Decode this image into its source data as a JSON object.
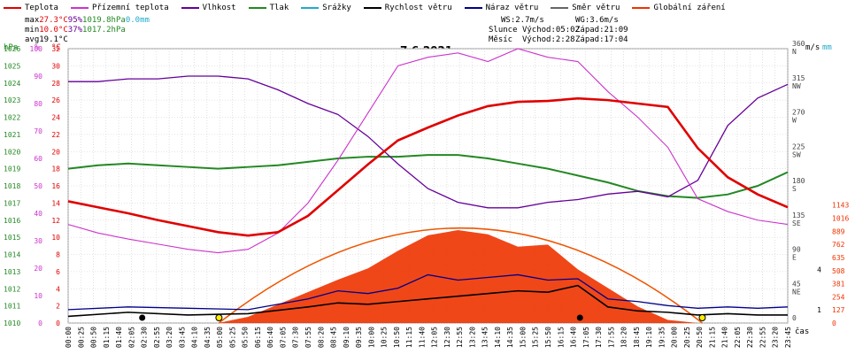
{
  "legend": [
    {
      "label": "Teplota",
      "color": "#e00000"
    },
    {
      "label": "Přízemní teplota",
      "color": "#cc33cc"
    },
    {
      "label": "Vlhkost",
      "color": "#660099"
    },
    {
      "label": "Tlak",
      "color": "#228822"
    },
    {
      "label": "Srážky",
      "color": "#22aacc"
    },
    {
      "label": "Rychlost větru",
      "color": "#000000"
    },
    {
      "label": "Náraz větru",
      "color": "#000088"
    },
    {
      "label": "Směr větru",
      "color": "#666666"
    },
    {
      "label": "Globální záření",
      "color": "#ee3300"
    }
  ],
  "stats": {
    "max": {
      "label": "max",
      "temp": "27.3°C",
      "hum": "95%",
      "press": "1019.8hPa",
      "rain": "0.0mm"
    },
    "min": {
      "label": "min",
      "temp": "10.0°C",
      "hum": "37%",
      "press": "1017.2hPa"
    },
    "avg": {
      "label": "avg",
      "temp": "19.1°C"
    }
  },
  "wind_info": {
    "ws": "WS:2.7m/s",
    "wg": "WG:3.6m/s",
    "sun_label": "Slunce",
    "sun_rise": "Východ:05:02",
    "sun_set": "Západ:21:09",
    "moon_label": "Měsíc",
    "moon_rise": "Východ:2:28",
    "moon_set": "Západ:17:04"
  },
  "date": "7.6.2021",
  "axis_titles": {
    "hpa": "hPa",
    "pct": "%",
    "degc": "°C",
    "ms": "m/s",
    "mm": "mm",
    "cas": "čas"
  },
  "colors": {
    "temp": "#e00000",
    "dew": "#cc33cc",
    "hum": "#660099",
    "press": "#228822",
    "rain": "#22aacc",
    "wind": "#000000",
    "gust": "#000088",
    "dir": "#666666",
    "rad": "#ee3300",
    "radcurve": "#ee5500",
    "grid": "#cccccc"
  },
  "chart_data": {
    "type": "line",
    "title": "7.6.2021",
    "xlabel": "čas",
    "x_ticks": [
      "00:00",
      "00:25",
      "00:50",
      "01:15",
      "01:40",
      "02:05",
      "02:30",
      "02:55",
      "03:20",
      "03:45",
      "04:10",
      "04:35",
      "05:00",
      "05:25",
      "05:50",
      "06:15",
      "06:40",
      "07:05",
      "07:30",
      "07:55",
      "08:20",
      "08:45",
      "09:10",
      "09:35",
      "10:00",
      "10:25",
      "10:50",
      "11:15",
      "11:40",
      "12:05",
      "12:30",
      "12:55",
      "13:20",
      "13:45",
      "14:10",
      "14:35",
      "15:00",
      "15:25",
      "15:50",
      "16:15",
      "16:40",
      "17:05",
      "17:30",
      "17:55",
      "18:20",
      "18:45",
      "19:10",
      "19:35",
      "20:00",
      "20:25",
      "20:50",
      "21:15",
      "21:40",
      "22:05",
      "22:30",
      "22:55",
      "23:20",
      "23:45"
    ],
    "axes": {
      "pressure_hpa": {
        "min": 1010,
        "max": 1026,
        "ticks": [
          1010,
          1011,
          1012,
          1013,
          1014,
          1015,
          1016,
          1017,
          1018,
          1019,
          1020,
          1021,
          1022,
          1023,
          1024,
          1025,
          1026
        ]
      },
      "humidity_pct": {
        "min": 0,
        "max": 100,
        "ticks": [
          0,
          10,
          20,
          30,
          40,
          50,
          60,
          70,
          80,
          90,
          100
        ]
      },
      "temperature_c": {
        "min": 0,
        "max": 32,
        "ticks": [
          0,
          2,
          4,
          6,
          8,
          10,
          12,
          14,
          16,
          18,
          20,
          22,
          24,
          26,
          28,
          30,
          32
        ]
      },
      "wind_dir_deg": {
        "min": 0,
        "max": 360,
        "ticks": [
          "0",
          "45 NE",
          "90 E",
          "135 SE",
          "180 S",
          "225 SW",
          "270 W",
          "315 NW",
          "360 N"
        ]
      },
      "wind_ms": {
        "ticks": [
          1,
          4
        ]
      },
      "radiation_wm2": {
        "ticks": [
          0,
          127,
          254,
          381,
          508,
          635,
          762,
          889,
          1016,
          1143
        ]
      }
    },
    "series": [
      {
        "name": "Teplota",
        "x": [
          0,
          1,
          2,
          3,
          4,
          5,
          6,
          7,
          8,
          9,
          10,
          11,
          12,
          13,
          14,
          15,
          16,
          17,
          18,
          19,
          20,
          21,
          22,
          23,
          24
        ],
        "values": [
          14.2,
          13.5,
          12.8,
          12.0,
          11.3,
          10.6,
          10.2,
          10.6,
          12.5,
          15.5,
          18.5,
          21.3,
          22.8,
          24.2,
          25.3,
          25.8,
          25.9,
          26.2,
          26.0,
          25.6,
          25.2,
          20.4,
          17.0,
          15.0,
          13.5
        ]
      },
      {
        "name": "Přízemní teplota",
        "x": [
          0,
          1,
          2,
          3,
          4,
          5,
          6,
          7,
          8,
          9,
          10,
          11,
          12,
          13,
          14,
          15,
          16,
          17,
          18,
          19,
          20,
          21,
          22,
          23,
          24
        ],
        "values": [
          11.5,
          10.5,
          9.8,
          9.2,
          8.6,
          8.2,
          8.6,
          10.5,
          14.0,
          19.0,
          24.5,
          30.0,
          31.0,
          31.5,
          30.5,
          32.0,
          31.0,
          30.5,
          27.0,
          24.0,
          20.5,
          14.5,
          13.0,
          12.0,
          11.5
        ]
      },
      {
        "name": "Vlhkost",
        "x": [
          0,
          1,
          2,
          3,
          4,
          5,
          6,
          7,
          8,
          9,
          10,
          11,
          12,
          13,
          14,
          15,
          16,
          17,
          18,
          19,
          20,
          21,
          22,
          23,
          24
        ],
        "values": [
          88,
          88,
          89,
          89,
          90,
          90,
          89,
          85,
          80,
          76,
          68,
          58,
          49,
          44,
          42,
          42,
          44,
          45,
          47,
          48,
          46,
          52,
          72,
          82,
          87
        ]
      },
      {
        "name": "Tlak",
        "x": [
          0,
          1,
          2,
          3,
          4,
          5,
          6,
          7,
          8,
          9,
          10,
          11,
          12,
          13,
          14,
          15,
          16,
          17,
          18,
          19,
          20,
          21,
          22,
          23,
          24
        ],
        "values": [
          1019.0,
          1019.2,
          1019.3,
          1019.2,
          1019.1,
          1019.0,
          1019.1,
          1019.2,
          1019.4,
          1019.6,
          1019.7,
          1019.7,
          1019.8,
          1019.8,
          1019.6,
          1019.3,
          1019.0,
          1018.6,
          1018.2,
          1017.7,
          1017.4,
          1017.3,
          1017.5,
          1018.0,
          1018.8
        ]
      },
      {
        "name": "Rychlost větru",
        "x": [
          0,
          2,
          4,
          6,
          8,
          9,
          10,
          11,
          12,
          13,
          14,
          15,
          16,
          17,
          18,
          19,
          20,
          21,
          22,
          23,
          24
        ],
        "values": [
          0.5,
          0.8,
          0.6,
          0.7,
          1.2,
          1.5,
          1.4,
          1.6,
          1.8,
          2.0,
          2.2,
          2.4,
          2.3,
          2.8,
          1.2,
          0.9,
          0.8,
          0.6,
          0.7,
          0.6,
          0.6
        ]
      },
      {
        "name": "Náraz větru",
        "x": [
          0,
          2,
          4,
          6,
          8,
          9,
          10,
          11,
          12,
          13,
          14,
          15,
          16,
          17,
          18,
          19,
          20,
          21,
          22,
          23,
          24
        ],
        "values": [
          1.0,
          1.2,
          1.1,
          1.0,
          1.8,
          2.4,
          2.2,
          2.6,
          3.6,
          3.2,
          3.4,
          3.6,
          3.2,
          3.3,
          1.8,
          1.6,
          1.3,
          1.1,
          1.2,
          1.1,
          1.2
        ]
      },
      {
        "name": "Globální záření",
        "x": [
          0,
          5,
          6,
          7,
          8,
          9,
          10,
          11,
          12,
          13,
          14,
          15,
          16,
          17,
          18,
          19,
          20,
          21,
          24
        ],
        "values": [
          0,
          0,
          60,
          180,
          300,
          420,
          530,
          700,
          850,
          900,
          860,
          740,
          760,
          520,
          340,
          160,
          30,
          0,
          0
        ]
      }
    ]
  }
}
